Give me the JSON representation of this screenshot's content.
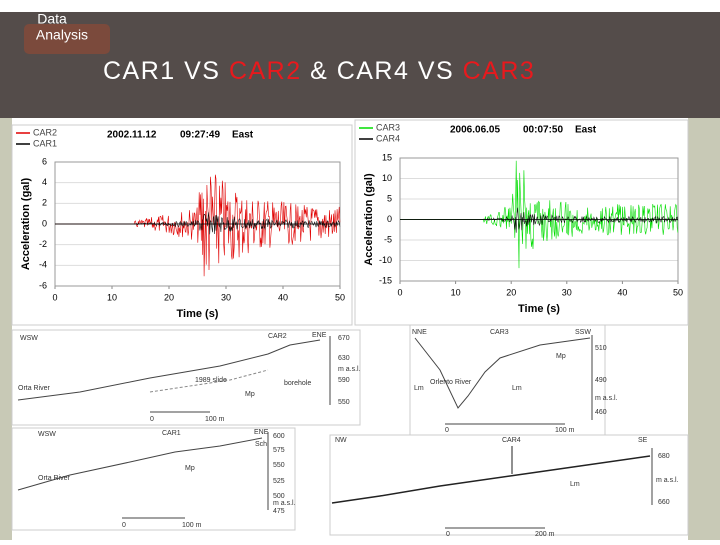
{
  "header": {
    "badge": [
      "Data",
      "Analysis"
    ],
    "title": [
      "CAR1 VS ",
      "CAR2",
      " & CAR4 VS ",
      "CAR3"
    ]
  },
  "plots": [
    {
      "series": [
        {
          "name": "CAR2",
          "color": "#e00000"
        },
        {
          "name": "CAR1",
          "color": "#000000"
        }
      ],
      "heading": [
        "2002.11.12",
        "09:27:49",
        "East"
      ],
      "y_label": "Acceleration (gal)",
      "x_label": "Time (s)",
      "ylim": [
        -6,
        6
      ],
      "yticks": [
        6,
        4,
        2,
        0,
        -2,
        -4,
        -6
      ],
      "xlim": [
        0,
        50
      ],
      "xticks": [
        0,
        10,
        20,
        30,
        40,
        50
      ]
    },
    {
      "series": [
        {
          "name": "CAR3",
          "color": "#00dd00"
        },
        {
          "name": "CAR4",
          "color": "#000000"
        }
      ],
      "heading": [
        "2006.06.05",
        "00:07:50",
        "East"
      ],
      "y_label": "Acceleration (gal)",
      "x_label": "Time (s)",
      "ylim": [
        -15,
        15
      ],
      "yticks": [
        15,
        10,
        5,
        0,
        -5,
        -10,
        -15
      ],
      "xlim": [
        0,
        50
      ],
      "xticks": [
        0,
        10,
        20,
        30,
        40,
        50
      ]
    }
  ],
  "sections": [
    {
      "labels": [
        "WSW",
        "CAR2",
        "ENE",
        "670",
        "630",
        "m a.s.l.",
        "590",
        "550",
        "Orta River",
        "1989 slide",
        "borehole",
        "Mp",
        "0",
        "100 m"
      ]
    },
    {
      "labels": [
        "NNE",
        "CAR3",
        "SSW",
        "510",
        "Mp",
        "490",
        "m a.s.l.",
        "460",
        "Orlento River",
        "Lm",
        "Lm",
        "0",
        "100 m"
      ]
    },
    {
      "labels": [
        "WSW",
        "CAR1",
        "ENE",
        "600",
        "Sch",
        "575",
        "550",
        "Mp",
        "525",
        "500",
        "m a.s.l.",
        "475",
        "Orta River",
        "0",
        "100 m"
      ]
    },
    {
      "labels": [
        "NW",
        "CAR4",
        "SE",
        "680",
        "m a.s.l.",
        "660",
        "Lm",
        "0",
        "200 m"
      ]
    }
  ]
}
